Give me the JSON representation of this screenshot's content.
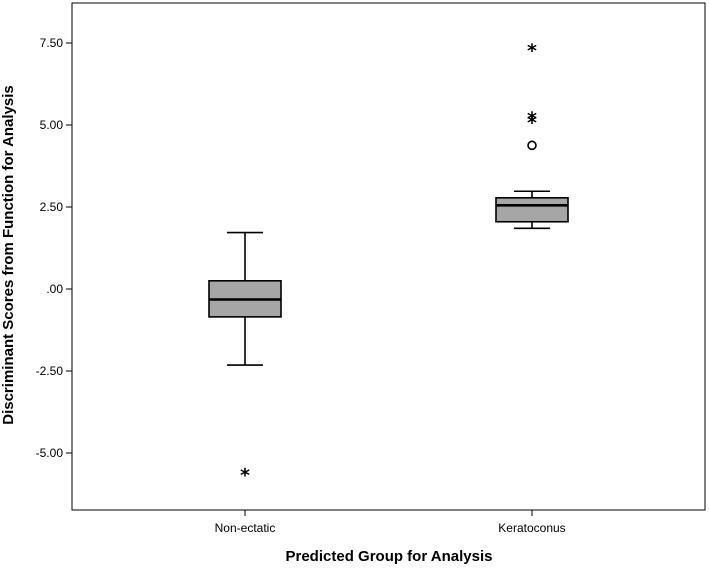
{
  "chart_data": {
    "type": "boxplot",
    "xlabel": "Predicted Group for Analysis",
    "ylabel": "Discriminant Scores from Function for Analysis",
    "ylim": [
      -6.6,
      8.7
    ],
    "yticks": [
      7.5,
      5.0,
      2.5,
      0.0,
      -2.5,
      -5.0
    ],
    "ytick_labels": [
      "7.50",
      "5.00",
      "2.50",
      ".00",
      "-2.50",
      "-5.00"
    ],
    "grid": false,
    "colors": {
      "box_fill": "#a6a6a6",
      "line": "#000000"
    },
    "groups": [
      {
        "category": "Non-ectatic",
        "whisker_low": -2.32,
        "q1": -0.85,
        "median": -0.32,
        "q3": 0.25,
        "whisker_high": 1.72,
        "outliers": [],
        "extremes": [
          -5.62
        ]
      },
      {
        "category": "Keratoconus",
        "whisker_low": 1.85,
        "q1": 2.05,
        "median": 2.55,
        "q3": 2.78,
        "whisker_high": 2.98,
        "outliers": [
          4.38
        ],
        "extremes": [
          7.32,
          5.25,
          5.12
        ]
      }
    ]
  }
}
